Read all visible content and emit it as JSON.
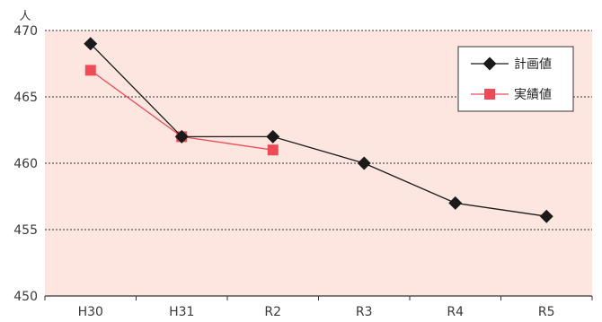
{
  "chart_data": {
    "type": "line",
    "categories": [
      "H30",
      "H31",
      "R2",
      "R3",
      "R4",
      "R5"
    ],
    "series": [
      {
        "name": "計画値",
        "values": [
          469,
          462,
          462,
          460,
          457,
          456
        ],
        "color": "#1a1a1a",
        "marker": "diamond"
      },
      {
        "name": "実績値",
        "values": [
          467,
          462,
          461,
          null,
          null,
          null
        ],
        "color": "#ef4b56",
        "marker": "square"
      }
    ],
    "ylabel": "人",
    "ylim": [
      450,
      470
    ],
    "yticks": [
      450,
      455,
      460,
      465,
      470
    ],
    "grid": true,
    "legend_position": "top-right",
    "plot_background": "#fde6e0"
  }
}
